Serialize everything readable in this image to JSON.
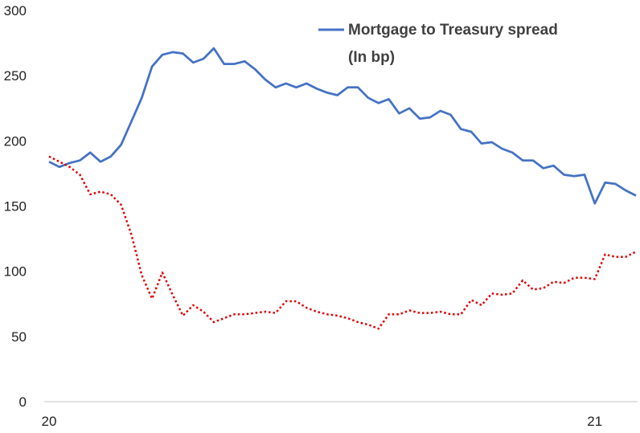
{
  "chart_data": {
    "type": "line",
    "title": "",
    "xlabel": "",
    "ylabel": "",
    "ylim": [
      0,
      300
    ],
    "yticks": [
      0,
      50,
      100,
      150,
      200,
      250,
      300
    ],
    "xticks": [
      {
        "label": "20",
        "index": 0
      },
      {
        "label": "21",
        "index": 53
      }
    ],
    "grid": false,
    "legend": {
      "placement": "top-right",
      "line1": "Mortgage to Treasury spread",
      "line2": "(In bp)"
    },
    "series": [
      {
        "name": "Mortgage to Treasury spread",
        "color": "#4472C4",
        "style": "solid",
        "values": [
          184,
          180,
          183,
          185,
          191,
          184,
          188,
          197,
          215,
          233,
          257,
          266,
          268,
          267,
          260,
          263,
          271,
          259,
          259,
          261,
          255,
          247,
          241,
          244,
          241,
          244,
          240,
          237,
          235,
          241,
          241,
          233,
          229,
          232,
          221,
          225,
          217,
          218,
          223,
          220,
          209,
          207,
          198,
          199,
          194,
          191,
          185,
          185,
          179,
          181,
          174,
          173,
          174,
          152,
          168,
          167,
          162,
          158
        ]
      },
      {
        "color": "#E00000",
        "style": "dotted",
        "values": [
          188,
          184,
          180,
          174,
          159,
          161,
          159,
          151,
          128,
          97,
          79,
          99,
          82,
          66,
          74,
          69,
          61,
          64,
          67,
          67,
          68,
          69,
          68,
          77,
          77,
          72,
          69,
          67,
          66,
          64,
          61,
          59,
          56,
          67,
          67,
          70,
          68,
          68,
          69,
          67,
          67,
          78,
          74,
          83,
          82,
          83,
          93,
          86,
          87,
          92,
          91,
          95,
          95,
          94,
          113,
          111,
          111,
          115
        ]
      }
    ]
  }
}
